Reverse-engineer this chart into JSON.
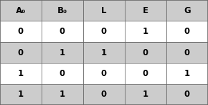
{
  "headers": [
    "A₀",
    "B₀",
    "L",
    "E",
    "G"
  ],
  "rows": [
    [
      "0",
      "0",
      "0",
      "1",
      "0"
    ],
    [
      "0",
      "1",
      "1",
      "0",
      "0"
    ],
    [
      "1",
      "0",
      "0",
      "0",
      "1"
    ],
    [
      "1",
      "1",
      "0",
      "1",
      "0"
    ]
  ],
  "header_bg": "#cccccc",
  "row_bg_even": "#ffffff",
  "row_bg_odd": "#cccccc",
  "border_color": "#666666",
  "text_color": "#000000",
  "header_fontsize": 8.5,
  "cell_fontsize": 8.5,
  "fig_width": 3.0,
  "fig_height": 1.52,
  "dpi": 100,
  "outer_border_lw": 1.2,
  "inner_border_lw": 0.6
}
